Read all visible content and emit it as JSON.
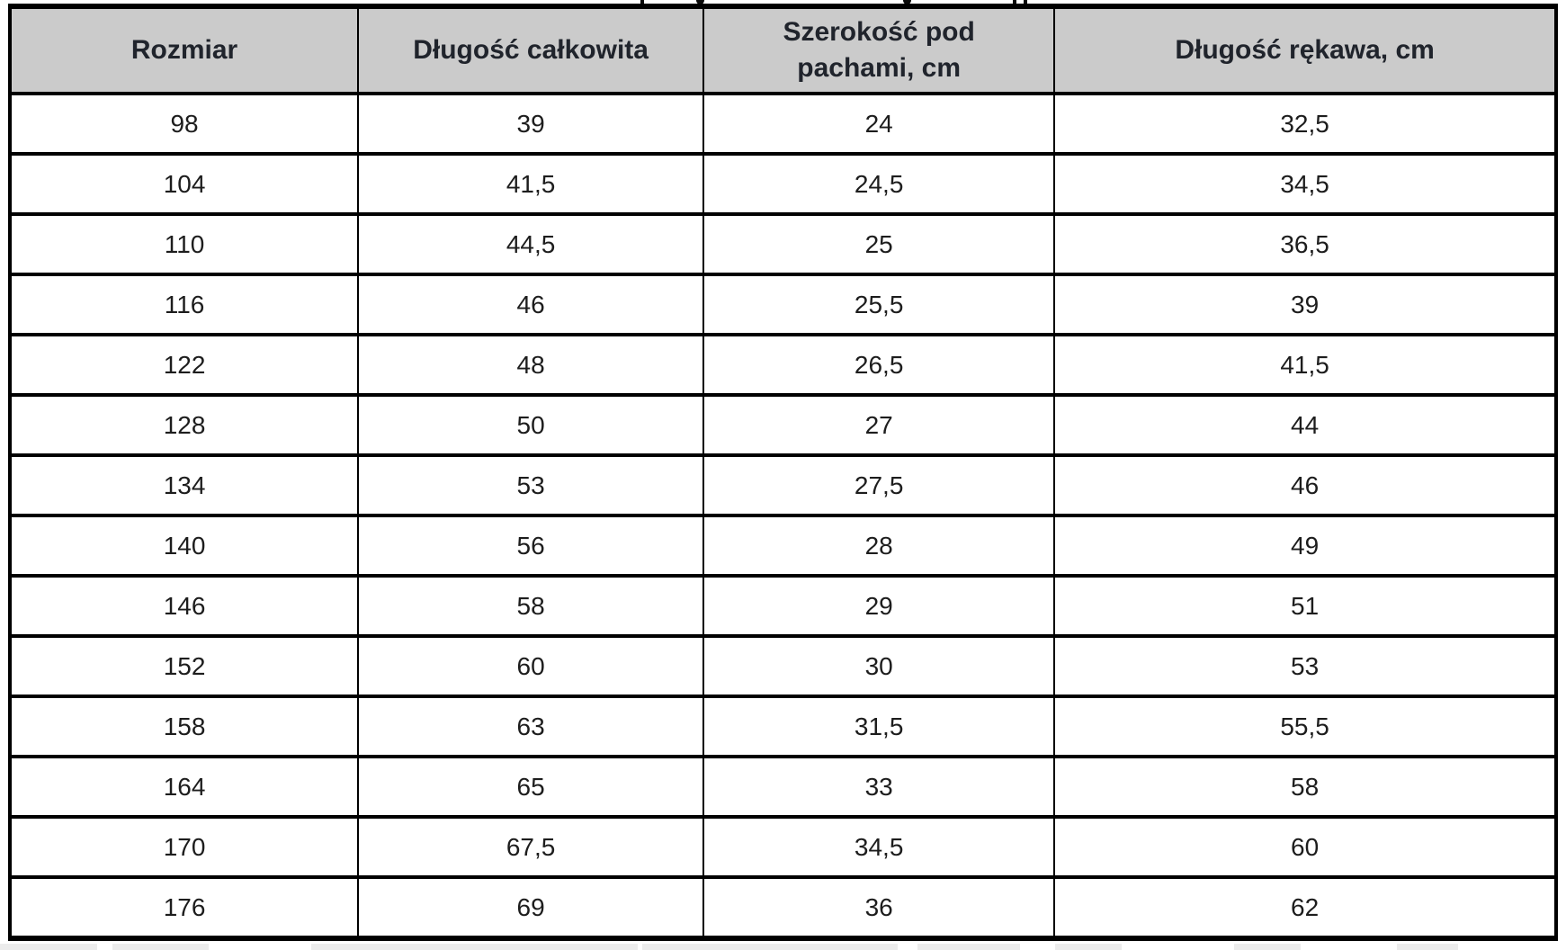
{
  "colors": {
    "header-bg": "#cbcbcb",
    "header-text": "#20242c",
    "body-text": "#1d1d1d",
    "border-color": "#000000"
  },
  "table": {
    "columns": [
      "Rozmiar",
      "Długość całkowita",
      "Szerokość pod pachami, cm",
      "Długość rękawa, cm"
    ],
    "rows": [
      [
        "98",
        "39",
        "24",
        "32,5"
      ],
      [
        "104",
        "41,5",
        "24,5",
        "34,5"
      ],
      [
        "110",
        "44,5",
        "25",
        "36,5"
      ],
      [
        "116",
        "46",
        "25,5",
        "39"
      ],
      [
        "122",
        "48",
        "26,5",
        "41,5"
      ],
      [
        "128",
        "50",
        "27",
        "44"
      ],
      [
        "134",
        "53",
        "27,5",
        "46"
      ],
      [
        "140",
        "56",
        "28",
        "49"
      ],
      [
        "146",
        "58",
        "29",
        "51"
      ],
      [
        "152",
        "60",
        "30",
        "53"
      ],
      [
        "158",
        "63",
        "31,5",
        "55,5"
      ],
      [
        "164",
        "65",
        "33",
        "58"
      ],
      [
        "170",
        "67,5",
        "34,5",
        "60"
      ],
      [
        "176",
        "69",
        "36",
        "62"
      ]
    ]
  }
}
